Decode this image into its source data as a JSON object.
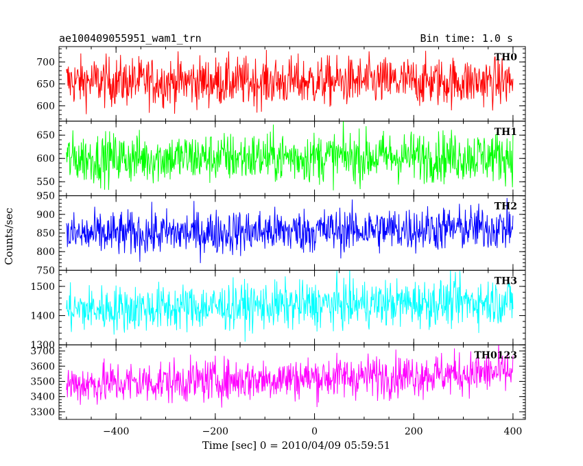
{
  "header": {
    "title": "ae100409055951_wam1_trn",
    "bin_time": "Bin time: 1.0 s"
  },
  "chart_data": {
    "type": "line",
    "title": "ae100409055951_wam1_trn",
    "xlabel": "Time [sec] 0 = 2010/04/09 05:59:51",
    "ylabel": "Counts/sec",
    "xlim": [
      -515,
      425
    ],
    "x_ticks": [
      -400,
      -200,
      0,
      200,
      400
    ],
    "x_tick_labels": [
      "−400",
      "−200",
      "0",
      "200",
      "400"
    ],
    "x_start": -500,
    "x_end": 400,
    "x_step": 1,
    "grid": false,
    "series": [
      {
        "name": "TH0",
        "color": "#ff0000",
        "ylim": [
          565,
          735
        ],
        "y_ticks": [
          600,
          650,
          700
        ],
        "y_tick_labels": [
          "600",
          "650",
          "700"
        ],
        "mean_start": 655,
        "mean_end": 655,
        "noise": 28
      },
      {
        "name": "TH1",
        "color": "#00ff00",
        "ylim": [
          520,
          680
        ],
        "y_ticks": [
          550,
          600,
          650
        ],
        "y_tick_labels": [
          "550",
          "600",
          "650"
        ],
        "mean_start": 600,
        "mean_end": 605,
        "noise": 27
      },
      {
        "name": "TH2",
        "color": "#0000ff",
        "ylim": [
          750,
          950
        ],
        "y_ticks": [
          750,
          800,
          850,
          900,
          950
        ],
        "y_tick_labels": [
          "750",
          "800",
          "850",
          "900",
          "950"
        ],
        "mean_start": 845,
        "mean_end": 865,
        "noise": 30
      },
      {
        "name": "TH3",
        "color": "#00ffff",
        "ylim": [
          1300,
          1555
        ],
        "y_ticks": [
          1300,
          1400,
          1500
        ],
        "y_tick_labels": [
          "1300",
          "1400",
          "1500"
        ],
        "mean_start": 1420,
        "mean_end": 1450,
        "noise": 40
      },
      {
        "name": "TH0123",
        "color": "#ff00ff",
        "ylim": [
          3250,
          3740
        ],
        "y_ticks": [
          3300,
          3400,
          3500,
          3600,
          3700
        ],
        "y_tick_labels": [
          "3300",
          "3400",
          "3500",
          "3600",
          "3700"
        ],
        "mean_start": 3480,
        "mean_end": 3560,
        "noise": 70
      }
    ]
  }
}
